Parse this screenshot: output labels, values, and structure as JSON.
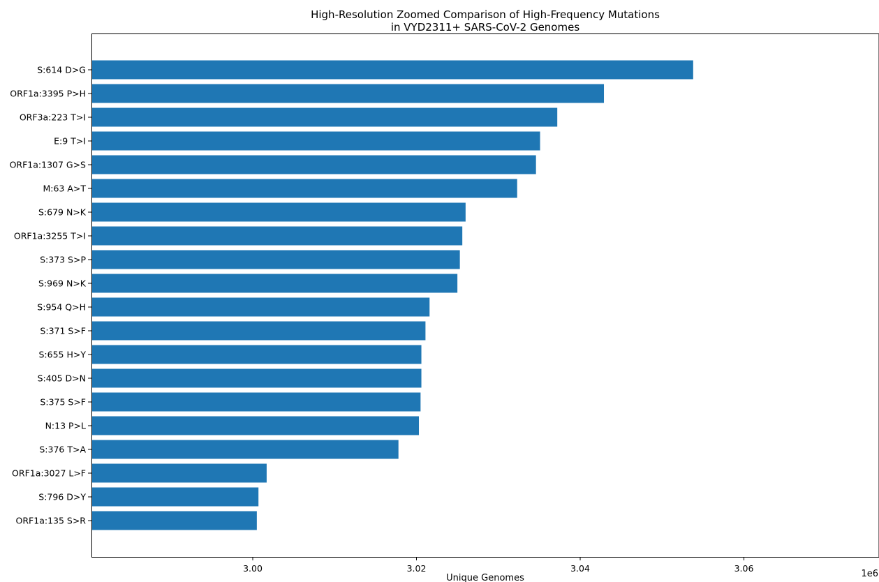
{
  "chart_data": {
    "type": "bar",
    "orientation": "horizontal",
    "title": "High-Resolution Zoomed Comparison of High-Frequency Mutations\nin VYD2311+ SARS-CoV-2 Genomes",
    "xlabel": "Unique Genomes",
    "ylabel": "",
    "x_offset_label": "1e6",
    "xlim": [
      2980300,
      3076500
    ],
    "xticks": [
      3000000,
      3020000,
      3040000,
      3060000
    ],
    "xtick_labels": [
      "3.00",
      "3.02",
      "3.04",
      "3.06"
    ],
    "grid": false,
    "bar_color": "#1f77b4",
    "categories": [
      "S:614 D>G",
      "ORF1a:3395 P>H",
      "ORF3a:223 T>I",
      "E:9 T>I",
      "ORF1a:1307 G>S",
      "M:63 A>T",
      "S:679 N>K",
      "ORF1a:3255 T>I",
      "S:373 S>P",
      "S:969 N>K",
      "S:954 Q>H",
      "S:371 S>F",
      "S:655 H>Y",
      "S:405 D>N",
      "S:375 S>F",
      "N:13 P>L",
      "S:376 T>A",
      "ORF1a:3027 L>F",
      "S:796 D>Y",
      "ORF1a:135 S>R"
    ],
    "values": [
      3053800,
      3042900,
      3037200,
      3035100,
      3034600,
      3032300,
      3026000,
      3025600,
      3025300,
      3025000,
      3021600,
      3021100,
      3020600,
      3020600,
      3020500,
      3020300,
      3017800,
      3001700,
      3000700,
      3000500
    ]
  }
}
